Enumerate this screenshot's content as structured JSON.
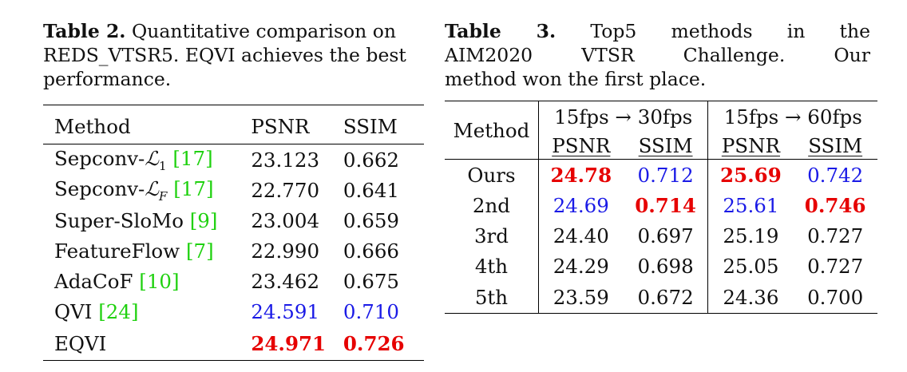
{
  "table2": {
    "caption_label": "Table 2.",
    "caption_text": " Quantitative comparison on REDS_VTSR5. EQVI achieves the best performance.",
    "columns": [
      "Method",
      "PSNR",
      "SSIM"
    ],
    "rows": [
      {
        "method": "Sepconv-",
        "math": "ℒ",
        "sub": "1",
        "cite": "[17]",
        "psnr": "23.123",
        "ssim": "0.662"
      },
      {
        "method": "Sepconv-",
        "math": "ℒ",
        "sub": "F",
        "cite": "[17]",
        "psnr": "22.770",
        "ssim": "0.641"
      },
      {
        "method": "Super-SloMo ",
        "cite": "[9]",
        "psnr": "23.004",
        "ssim": "0.659"
      },
      {
        "method": "FeatureFlow ",
        "cite": "[7]",
        "psnr": "22.990",
        "ssim": "0.666"
      },
      {
        "method": "AdaCoF ",
        "cite": "[10]",
        "psnr": "23.462",
        "ssim": "0.675"
      },
      {
        "method": "QVI ",
        "cite": "[24]",
        "psnr": "24.591",
        "ssim": "0.710"
      },
      {
        "method": "EQVI",
        "psnr": "24.971",
        "ssim": "0.726"
      }
    ]
  },
  "table3": {
    "caption_label": "Table 3.",
    "caption_lines": [
      "Table 3. Top5 methods in the",
      "AIM2020 VTSR Challenge. Our",
      "method won the first place."
    ],
    "caption_line1_rest": "Top5 methods in the",
    "caption_line2": "AIM2020 VTSR Challenge. Our",
    "caption_line3": "method won the first place.",
    "method_header": "Method",
    "groups": [
      "15fps → 30fps",
      "15fps → 60fps"
    ],
    "subcolumns": [
      "PSNR",
      "SSIM",
      "PSNR",
      "SSIM"
    ],
    "rows": [
      {
        "method": "Ours",
        "v": [
          "24.78",
          "0.712",
          "25.69",
          "0.742"
        ]
      },
      {
        "method": "2nd",
        "v": [
          "24.69",
          "0.714",
          "25.61",
          "0.746"
        ]
      },
      {
        "method": "3rd",
        "v": [
          "24.40",
          "0.697",
          "25.19",
          "0.727"
        ]
      },
      {
        "method": "4th",
        "v": [
          "24.29",
          "0.698",
          "25.05",
          "0.727"
        ]
      },
      {
        "method": "5th",
        "v": [
          "23.59",
          "0.672",
          "24.36",
          "0.700"
        ]
      }
    ]
  },
  "colors": {
    "best": "#e60000",
    "second": "#1a1ae6",
    "citation": "#1fd10f"
  }
}
